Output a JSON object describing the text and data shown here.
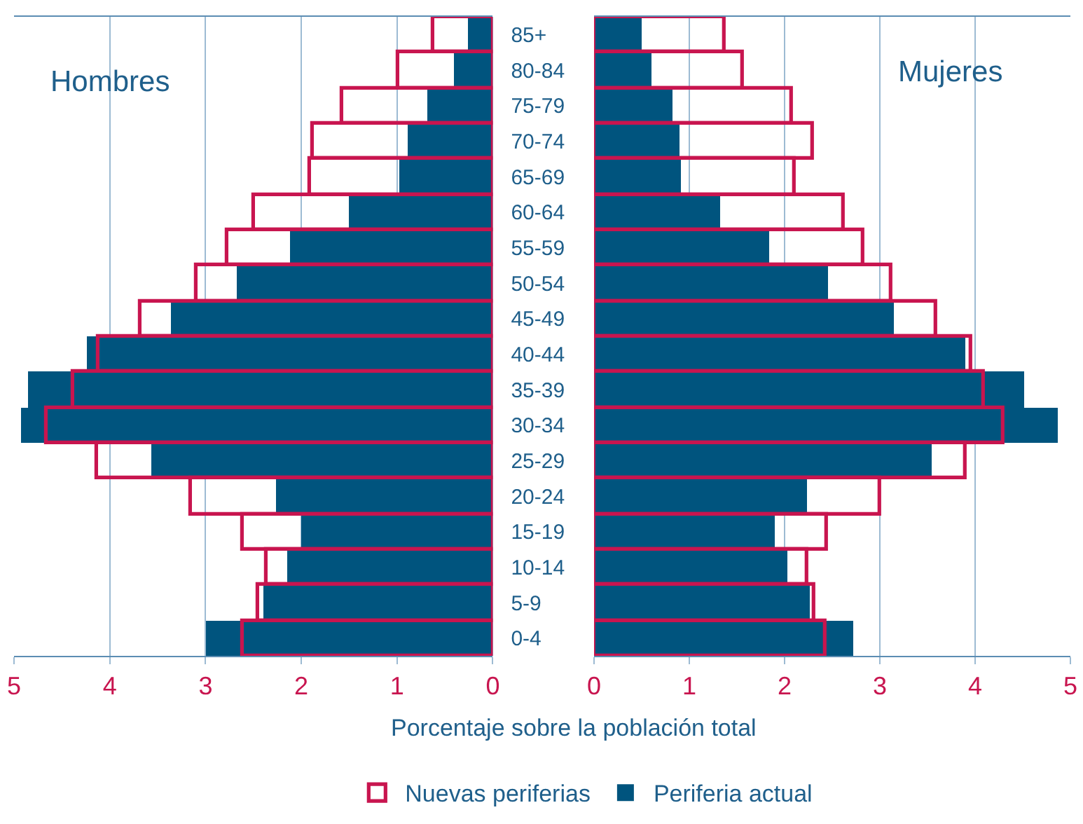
{
  "chart_data": [
    {
      "type": "bar",
      "orientation": "horizontal",
      "title": "Hombres",
      "xlabel": "Porcentaje sobre la población total",
      "categories": [
        "85+",
        "80-84",
        "75-79",
        "70-74",
        "65-69",
        "60-64",
        "55-59",
        "50-54",
        "45-49",
        "40-44",
        "35-39",
        "30-34",
        "25-29",
        "20-24",
        "15-19",
        "10-14",
        "5-9",
        "0-4"
      ],
      "series": [
        {
          "name": "Nuevas periferias",
          "color": "#c8154f",
          "values": [
            0.63,
            0.99,
            1.57,
            1.89,
            1.92,
            2.5,
            2.78,
            3.1,
            3.68,
            4.12,
            4.39,
            4.66,
            4.14,
            3.15,
            2.62,
            2.37,
            2.45,
            2.61
          ]
        },
        {
          "name": "Periferia actual",
          "color": "#00547e",
          "values": [
            0.26,
            0.41,
            0.68,
            0.89,
            0.98,
            1.51,
            2.12,
            2.67,
            3.36,
            4.24,
            4.85,
            4.93,
            3.56,
            2.27,
            2.0,
            2.15,
            2.39,
            2.99
          ]
        }
      ],
      "xlim": [
        5,
        0
      ],
      "xticks": [
        0,
        1,
        2,
        3,
        4,
        5
      ],
      "grid": "x",
      "legend": "bottom"
    },
    {
      "type": "bar",
      "orientation": "horizontal",
      "title": "Mujeres",
      "categories": [
        "85+",
        "80-84",
        "75-79",
        "70-74",
        "65-69",
        "60-64",
        "55-59",
        "50-54",
        "45-49",
        "40-44",
        "35-39",
        "30-34",
        "25-29",
        "20-24",
        "15-19",
        "10-14",
        "5-9",
        "0-4"
      ],
      "series": [
        {
          "name": "Nuevas periferias",
          "color": "#c8154f",
          "values": [
            1.37,
            1.56,
            2.08,
            2.3,
            2.1,
            2.62,
            2.82,
            3.12,
            3.59,
            3.95,
            4.09,
            4.3,
            3.89,
            3.0,
            2.44,
            2.23,
            2.31,
            2.42
          ]
        },
        {
          "name": "Periferia actual",
          "color": "#00547e",
          "values": [
            0.5,
            0.6,
            0.82,
            0.89,
            0.91,
            1.33,
            1.84,
            2.46,
            3.15,
            3.89,
            4.51,
            4.87,
            3.54,
            2.24,
            1.89,
            2.03,
            2.27,
            2.72
          ]
        }
      ],
      "xlim": [
        0,
        5
      ],
      "xticks": [
        0,
        1,
        2,
        3,
        4,
        5
      ],
      "grid": "x",
      "tick_labels": "x"
    }
  ]
}
